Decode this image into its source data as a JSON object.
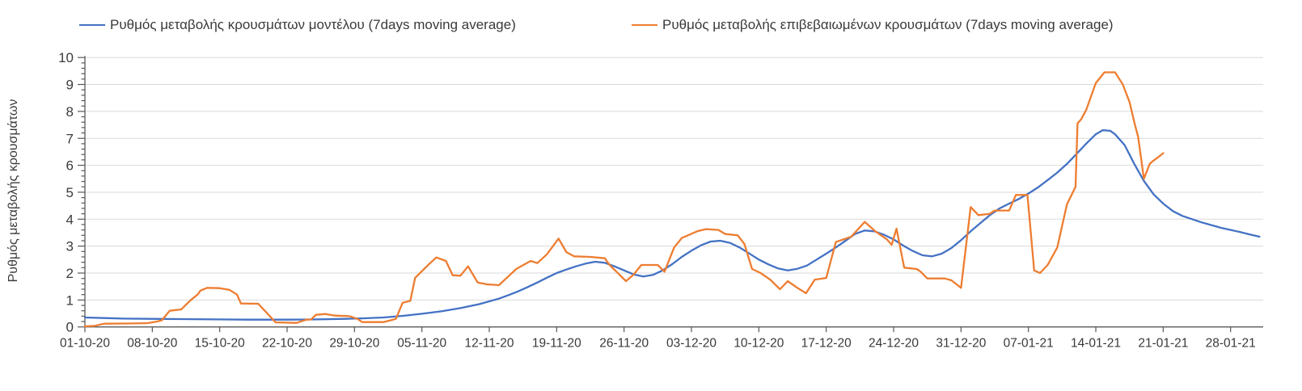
{
  "legend": [
    {
      "id": "model",
      "label": "Ρυθμός μεταβολής κρουσμάτων μοντέλου (7days moving average)",
      "color": "#4472C4"
    },
    {
      "id": "confirmed",
      "label": "Ρυθμός μεταβολής επιβεβαιωμένων κρουσμάτων (7days moving average)",
      "color": "#ED7D31"
    }
  ],
  "y_axis": {
    "title": "Ρυθμός μεταβολής κρουσμάτων",
    "min": 0,
    "max": 10,
    "major_step": 1,
    "minor_step": 0.2,
    "tick_labels": [
      "0",
      "1",
      "2",
      "3",
      "4",
      "5",
      "6",
      "7",
      "8",
      "9",
      "10"
    ]
  },
  "x_axis": {
    "tick_labels": [
      "01-10-20",
      "08-10-20",
      "15-10-20",
      "22-10-20",
      "29-10-20",
      "05-11-20",
      "12-11-20",
      "19-11-20",
      "26-11-20",
      "03-12-20",
      "10-12-20",
      "17-12-20",
      "24-12-20",
      "31-12-20",
      "07-01-21",
      "14-01-21",
      "21-01-21",
      "28-01-21"
    ],
    "days_between_ticks": 7
  },
  "chart_data": {
    "type": "line",
    "title": "",
    "xlabel": "",
    "ylabel": "Ρυθμός μεταβολής κρουσμάτων",
    "ylim": [
      0,
      10
    ],
    "x_unit": "days since 01-10-20 (weekly axis ticks)",
    "xlim_days": [
      0,
      122.5
    ],
    "grid": "horizontal",
    "legend_position": "top",
    "colors": {
      "grid": "#D9D9D9",
      "axis": "#595959",
      "tick_text": "#3a3a3a"
    },
    "series": [
      {
        "id": "model",
        "name": "Ρυθμός μεταβολής κρουσμάτων μοντέλου (7days moving average)",
        "color": "#4472C4",
        "points": [
          [
            0,
            0.35
          ],
          [
            2,
            0.33
          ],
          [
            4,
            0.31
          ],
          [
            7,
            0.3
          ],
          [
            10,
            0.29
          ],
          [
            14,
            0.28
          ],
          [
            17,
            0.27
          ],
          [
            21,
            0.27
          ],
          [
            24,
            0.28
          ],
          [
            27,
            0.3
          ],
          [
            29,
            0.32
          ],
          [
            31,
            0.35
          ],
          [
            33,
            0.41
          ],
          [
            35,
            0.49
          ],
          [
            37,
            0.58
          ],
          [
            39,
            0.7
          ],
          [
            41,
            0.85
          ],
          [
            42,
            0.95
          ],
          [
            43,
            1.05
          ],
          [
            44,
            1.18
          ],
          [
            45,
            1.32
          ],
          [
            46,
            1.48
          ],
          [
            47,
            1.65
          ],
          [
            48,
            1.83
          ],
          [
            49,
            2.0
          ],
          [
            50,
            2.13
          ],
          [
            51,
            2.25
          ],
          [
            52,
            2.35
          ],
          [
            53,
            2.42
          ],
          [
            54,
            2.38
          ],
          [
            55,
            2.25
          ],
          [
            56,
            2.1
          ],
          [
            57,
            1.95
          ],
          [
            58,
            1.87
          ],
          [
            59,
            1.93
          ],
          [
            60,
            2.1
          ],
          [
            61,
            2.33
          ],
          [
            62,
            2.6
          ],
          [
            63,
            2.83
          ],
          [
            64,
            3.03
          ],
          [
            65,
            3.17
          ],
          [
            66,
            3.2
          ],
          [
            67,
            3.12
          ],
          [
            68,
            2.95
          ],
          [
            69,
            2.73
          ],
          [
            70,
            2.5
          ],
          [
            71,
            2.32
          ],
          [
            72,
            2.17
          ],
          [
            73,
            2.1
          ],
          [
            74,
            2.16
          ],
          [
            75,
            2.28
          ],
          [
            76,
            2.5
          ],
          [
            77,
            2.72
          ],
          [
            78,
            2.95
          ],
          [
            79,
            3.2
          ],
          [
            80,
            3.45
          ],
          [
            81,
            3.58
          ],
          [
            82,
            3.55
          ],
          [
            83,
            3.42
          ],
          [
            84,
            3.25
          ],
          [
            85,
            3.02
          ],
          [
            86,
            2.82
          ],
          [
            87,
            2.66
          ],
          [
            88,
            2.62
          ],
          [
            89,
            2.72
          ],
          [
            90,
            2.93
          ],
          [
            91,
            3.22
          ],
          [
            92,
            3.55
          ],
          [
            93,
            3.85
          ],
          [
            94,
            4.15
          ],
          [
            95,
            4.4
          ],
          [
            96,
            4.58
          ],
          [
            97,
            4.75
          ],
          [
            98,
            4.95
          ],
          [
            99,
            5.18
          ],
          [
            100,
            5.45
          ],
          [
            101,
            5.73
          ],
          [
            102,
            6.05
          ],
          [
            103,
            6.42
          ],
          [
            104,
            6.8
          ],
          [
            105,
            7.15
          ],
          [
            105.7,
            7.3
          ],
          [
            106.5,
            7.28
          ],
          [
            107,
            7.15
          ],
          [
            108,
            6.75
          ],
          [
            109,
            6.05
          ],
          [
            110,
            5.42
          ],
          [
            111,
            4.92
          ],
          [
            112,
            4.58
          ],
          [
            113,
            4.3
          ],
          [
            114,
            4.12
          ],
          [
            115,
            4.0
          ],
          [
            116,
            3.88
          ],
          [
            117,
            3.78
          ],
          [
            118,
            3.68
          ],
          [
            119,
            3.6
          ],
          [
            120,
            3.52
          ],
          [
            121,
            3.43
          ],
          [
            122,
            3.35
          ]
        ]
      },
      {
        "id": "confirmed",
        "name": "Ρυθμός μεταβολής επιβεβαιωμένων κρουσμάτων (7days moving average)",
        "color": "#ED7D31",
        "points": [
          [
            0,
            0.02
          ],
          [
            1,
            0.04
          ],
          [
            2,
            0.12
          ],
          [
            5,
            0.13
          ],
          [
            6.5,
            0.14
          ],
          [
            7.5,
            0.2
          ],
          [
            8,
            0.25
          ],
          [
            8.8,
            0.6
          ],
          [
            10,
            0.65
          ],
          [
            11,
            1.0
          ],
          [
            11.7,
            1.2
          ],
          [
            12,
            1.35
          ],
          [
            12.7,
            1.45
          ],
          [
            14,
            1.44
          ],
          [
            15,
            1.38
          ],
          [
            15.8,
            1.2
          ],
          [
            16.2,
            0.87
          ],
          [
            18,
            0.86
          ],
          [
            19,
            0.48
          ],
          [
            19.8,
            0.17
          ],
          [
            22,
            0.15
          ],
          [
            23,
            0.27
          ],
          [
            23.5,
            0.28
          ],
          [
            24,
            0.45
          ],
          [
            25,
            0.48
          ],
          [
            26,
            0.42
          ],
          [
            27.5,
            0.4
          ],
          [
            28.3,
            0.3
          ],
          [
            28.8,
            0.18
          ],
          [
            31,
            0.18
          ],
          [
            31.8,
            0.25
          ],
          [
            32.3,
            0.3
          ],
          [
            33,
            0.9
          ],
          [
            33.8,
            0.97
          ],
          [
            34.3,
            1.82
          ],
          [
            35,
            2.07
          ],
          [
            35.8,
            2.35
          ],
          [
            36.5,
            2.58
          ],
          [
            37.5,
            2.45
          ],
          [
            38.2,
            1.92
          ],
          [
            39,
            1.9
          ],
          [
            39.8,
            2.25
          ],
          [
            40.8,
            1.65
          ],
          [
            41.8,
            1.58
          ],
          [
            43,
            1.55
          ],
          [
            44.2,
            1.95
          ],
          [
            44.8,
            2.15
          ],
          [
            46.3,
            2.45
          ],
          [
            47,
            2.37
          ],
          [
            48,
            2.7
          ],
          [
            49.2,
            3.28
          ],
          [
            50,
            2.78
          ],
          [
            50.8,
            2.62
          ],
          [
            52.5,
            2.6
          ],
          [
            54,
            2.55
          ],
          [
            54.5,
            2.3
          ],
          [
            55.5,
            1.95
          ],
          [
            56.2,
            1.7
          ],
          [
            57,
            1.95
          ],
          [
            57.8,
            2.3
          ],
          [
            59.5,
            2.3
          ],
          [
            60.2,
            2.05
          ],
          [
            61.2,
            2.95
          ],
          [
            62,
            3.3
          ],
          [
            63.6,
            3.55
          ],
          [
            64.5,
            3.63
          ],
          [
            65.8,
            3.6
          ],
          [
            66.5,
            3.45
          ],
          [
            67.8,
            3.4
          ],
          [
            68.5,
            3.08
          ],
          [
            69.3,
            2.15
          ],
          [
            70.2,
            2.0
          ],
          [
            71.2,
            1.75
          ],
          [
            72.2,
            1.4
          ],
          [
            73,
            1.7
          ],
          [
            74,
            1.45
          ],
          [
            74.9,
            1.25
          ],
          [
            75.8,
            1.75
          ],
          [
            77,
            1.82
          ],
          [
            78,
            3.15
          ],
          [
            79.6,
            3.35
          ],
          [
            81,
            3.9
          ],
          [
            82.1,
            3.55
          ],
          [
            83.3,
            3.25
          ],
          [
            83.8,
            3.05
          ],
          [
            84.3,
            3.65
          ],
          [
            85.1,
            2.2
          ],
          [
            86.4,
            2.15
          ],
          [
            86.8,
            2.05
          ],
          [
            87.5,
            1.8
          ],
          [
            89.3,
            1.8
          ],
          [
            90,
            1.73
          ],
          [
            91,
            1.45
          ],
          [
            92,
            4.45
          ],
          [
            92.8,
            4.15
          ],
          [
            94,
            4.2
          ],
          [
            94.5,
            4.32
          ],
          [
            96,
            4.32
          ],
          [
            96.7,
            4.9
          ],
          [
            97.9,
            4.9
          ],
          [
            98.6,
            2.1
          ],
          [
            99.2,
            2.0
          ],
          [
            100,
            2.3
          ],
          [
            101,
            2.95
          ],
          [
            102,
            4.55
          ],
          [
            102.9,
            5.2
          ],
          [
            103.1,
            7.55
          ],
          [
            103.5,
            7.72
          ],
          [
            104,
            8.05
          ],
          [
            105,
            9.05
          ],
          [
            105.9,
            9.45
          ],
          [
            107,
            9.45
          ],
          [
            107.8,
            9.0
          ],
          [
            108.5,
            8.35
          ],
          [
            109,
            7.6
          ],
          [
            109.4,
            7.05
          ],
          [
            110,
            5.5
          ],
          [
            110.6,
            6.05
          ],
          [
            110.9,
            6.15
          ],
          [
            111.4,
            6.28
          ],
          [
            112,
            6.45
          ]
        ]
      }
    ]
  }
}
